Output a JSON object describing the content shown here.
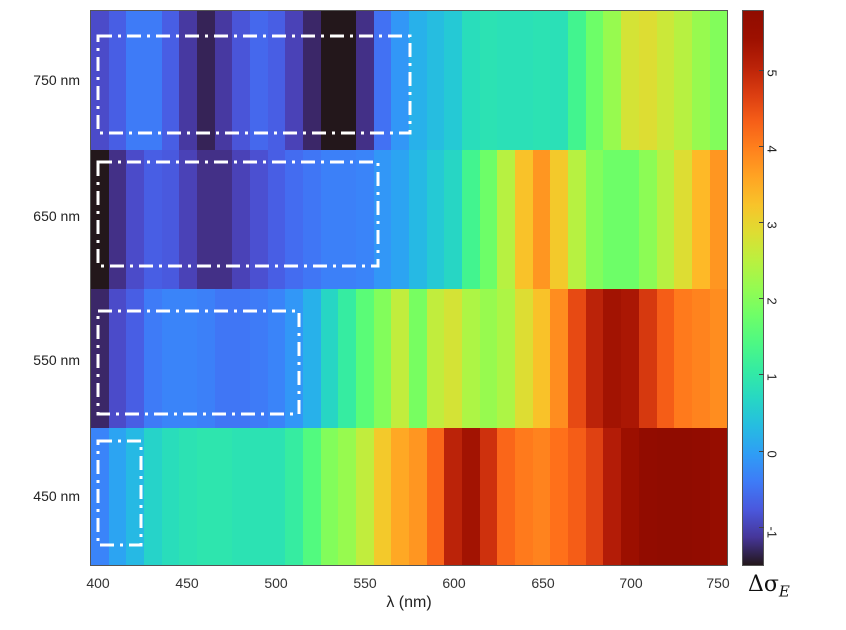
{
  "chart_data": {
    "type": "heatmap",
    "title": "",
    "xlabel": "λ (nm)",
    "ylabel": "",
    "colorbar_label": "Δσ_E",
    "colormap": "turbo",
    "color_range": [
      -1.5,
      5.85
    ],
    "x_ticks": [
      400,
      450,
      500,
      550,
      600,
      650,
      700,
      750
    ],
    "x_range": [
      395,
      755
    ],
    "colorbar_ticks": [
      -1,
      0,
      1,
      2,
      3,
      4,
      5
    ],
    "y_categories": [
      "750 nm",
      "650 nm",
      "550 nm",
      "450 nm"
    ],
    "x_bins_nm": [
      400,
      410,
      420,
      430,
      440,
      450,
      460,
      470,
      480,
      490,
      500,
      510,
      520,
      530,
      540,
      550,
      560,
      570,
      580,
      590,
      600,
      610,
      620,
      630,
      640,
      650,
      660,
      670,
      680,
      690,
      700,
      710,
      720,
      730,
      740,
      750
    ],
    "rows": [
      {
        "name": "750 nm",
        "values": [
          -0.9,
          -0.7,
          -0.4,
          -0.4,
          -0.7,
          -1.1,
          -1.35,
          -1.1,
          -0.8,
          -0.6,
          -0.7,
          -1.0,
          -1.3,
          -1.5,
          -1.5,
          -1.2,
          -0.5,
          -0.1,
          0.2,
          0.35,
          0.5,
          0.8,
          0.9,
          0.85,
          0.85,
          0.9,
          0.85,
          1.3,
          1.8,
          2.2,
          2.8,
          2.9,
          2.7,
          2.5,
          2.2,
          2.0
        ]
      },
      {
        "name": "650 nm",
        "values": [
          -1.5,
          -1.2,
          -0.9,
          -0.7,
          -0.75,
          -1.0,
          -1.2,
          -1.2,
          -1.0,
          -0.85,
          -0.7,
          -0.55,
          -0.45,
          -0.35,
          -0.35,
          -0.3,
          -0.1,
          0.05,
          0.3,
          0.5,
          0.7,
          1.3,
          1.8,
          2.5,
          3.3,
          3.8,
          3.2,
          2.5,
          2.0,
          1.8,
          1.8,
          2.1,
          2.5,
          2.9,
          3.4,
          3.8
        ]
      },
      {
        "name": "550 nm",
        "values": [
          -1.3,
          -0.9,
          -0.7,
          -0.4,
          -0.3,
          -0.3,
          -0.35,
          -0.45,
          -0.45,
          -0.4,
          -0.3,
          -0.1,
          0.2,
          0.7,
          1.1,
          1.6,
          2.0,
          2.6,
          1.9,
          2.6,
          2.8,
          2.4,
          2.2,
          2.4,
          2.9,
          3.3,
          3.9,
          4.6,
          5.1,
          5.4,
          5.3,
          4.8,
          4.4,
          4.1,
          4.0,
          3.9
        ]
      },
      {
        "name": "450 nm",
        "values": [
          -0.3,
          0.05,
          0.3,
          0.65,
          0.8,
          0.9,
          0.95,
          0.95,
          0.9,
          0.9,
          0.9,
          1.1,
          1.5,
          2.0,
          2.2,
          2.6,
          3.2,
          3.6,
          3.8,
          4.3,
          5.1,
          5.4,
          4.9,
          4.3,
          4.1,
          4.0,
          4.2,
          4.4,
          4.7,
          5.2,
          5.5,
          5.7,
          5.85,
          5.85,
          5.7,
          5.6
        ]
      }
    ],
    "annotations": [
      {
        "type": "dash-dot rectangle",
        "row": "750 nm",
        "x_start_nm": 400,
        "x_end_nm": 575
      },
      {
        "type": "dash-dot rectangle",
        "row": "650 nm",
        "x_start_nm": 400,
        "x_end_nm": 557
      },
      {
        "type": "dash-dot rectangle",
        "row": "550 nm",
        "x_start_nm": 400,
        "x_end_nm": 513
      },
      {
        "type": "dash-dot rectangle",
        "row": "450 nm",
        "x_start_nm": 400,
        "x_end_nm": 423
      }
    ]
  },
  "labels": {
    "y": [
      "750 nm",
      "650 nm",
      "550 nm",
      "450 nm"
    ],
    "x": [
      "400",
      "450",
      "500",
      "550",
      "600",
      "650",
      "700",
      "750"
    ],
    "xlabel": "λ (nm)",
    "cbar": [
      "5",
      "4",
      "3",
      "2",
      "1",
      "0",
      "-1"
    ],
    "cbar_label_main": "Δσ",
    "cbar_label_sub": "E"
  }
}
